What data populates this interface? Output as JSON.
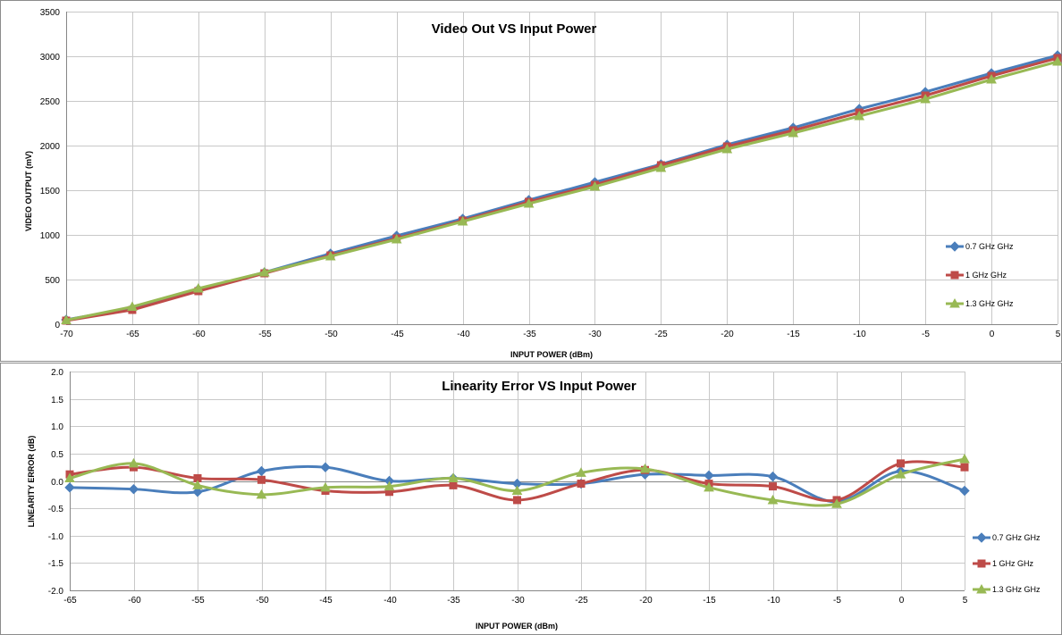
{
  "chart_data": [
    {
      "type": "line",
      "title": "Video Out VS Input Power",
      "xlabel": "INPUT POWER (dBm)",
      "ylabel": "VIDEO OUTPUT (mV)",
      "xlim": [
        -70,
        5
      ],
      "ylim": [
        0,
        3500
      ],
      "x_ticks": [
        -70,
        -65,
        -60,
        -55,
        -50,
        -45,
        -40,
        -35,
        -30,
        -25,
        -20,
        -15,
        -10,
        -5,
        0,
        5
      ],
      "y_ticks": [
        0,
        500,
        1000,
        1500,
        2000,
        2500,
        3000,
        3500
      ],
      "grid": true,
      "smooth": false,
      "legend_position": "right",
      "x": [
        -70,
        -65,
        -60,
        -55,
        -50,
        -45,
        -40,
        -35,
        -30,
        -25,
        -20,
        -15,
        -10,
        -5,
        0,
        5
      ],
      "series": [
        {
          "name": "0.7 GHz GHz",
          "color": "#4a7ebb",
          "marker": "diamond",
          "values": [
            50,
            180,
            390,
            580,
            790,
            990,
            1180,
            1390,
            1590,
            1790,
            2010,
            2200,
            2410,
            2600,
            2810,
            3010
          ]
        },
        {
          "name": "1 GHz GHz",
          "color": "#be4b48",
          "marker": "square",
          "values": [
            40,
            160,
            370,
            570,
            770,
            960,
            1160,
            1370,
            1560,
            1780,
            1990,
            2170,
            2370,
            2560,
            2780,
            2980
          ]
        },
        {
          "name": "1.3 GHz GHz",
          "color": "#98b954",
          "marker": "triangle",
          "values": [
            45,
            195,
            400,
            580,
            760,
            950,
            1150,
            1350,
            1540,
            1750,
            1960,
            2140,
            2330,
            2520,
            2740,
            2940
          ]
        }
      ]
    },
    {
      "type": "line",
      "title": "Linearity Error VS Input Power",
      "xlabel": "INPUT POWER (dBm)",
      "ylabel": "LINEARITY ERROR (dB)",
      "xlim": [
        -65,
        5
      ],
      "ylim": [
        -2.0,
        2.0
      ],
      "x_ticks": [
        -65,
        -60,
        -55,
        -50,
        -45,
        -40,
        -35,
        -30,
        -25,
        -20,
        -15,
        -10,
        -5,
        0,
        5
      ],
      "y_ticks": [
        "-2.0",
        "-1.5",
        "-1.0",
        "-0.5",
        "0.0",
        "0.5",
        "1.0",
        "1.5",
        "2.0"
      ],
      "grid": true,
      "smooth": true,
      "legend_position": "right",
      "x": [
        -65,
        -60,
        -55,
        -50,
        -45,
        -40,
        -35,
        -30,
        -25,
        -20,
        -15,
        -10,
        -5,
        0,
        5
      ],
      "series": [
        {
          "name": "0.7 GHz GHz",
          "color": "#4a7ebb",
          "marker": "diamond",
          "values": [
            -0.12,
            -0.15,
            -0.2,
            0.18,
            0.25,
            0.0,
            0.05,
            -0.05,
            -0.05,
            0.12,
            0.1,
            0.08,
            -0.38,
            0.18,
            -0.18
          ]
        },
        {
          "name": "1 GHz GHz",
          "color": "#be4b48",
          "marker": "square",
          "values": [
            0.12,
            0.25,
            0.05,
            0.02,
            -0.18,
            -0.2,
            -0.08,
            -0.35,
            -0.05,
            0.2,
            -0.05,
            -0.1,
            -0.35,
            0.32,
            0.25
          ]
        },
        {
          "name": "1.3 GHz GHz",
          "color": "#98b954",
          "marker": "triangle",
          "values": [
            0.05,
            0.32,
            -0.08,
            -0.25,
            -0.12,
            -0.1,
            0.05,
            -0.18,
            0.15,
            0.22,
            -0.12,
            -0.35,
            -0.42,
            0.12,
            0.4
          ]
        }
      ]
    }
  ]
}
